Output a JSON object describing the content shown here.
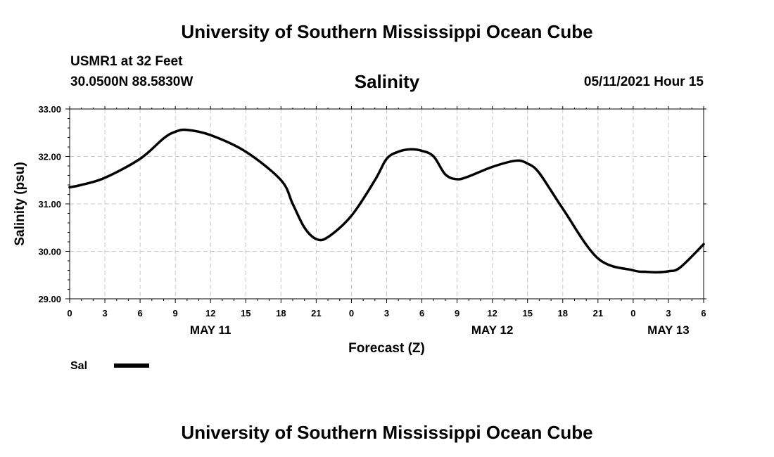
{
  "header": {
    "title": "University of Southern Mississippi Ocean Cube",
    "station": "USMR1 at 32 Feet",
    "coordinates": "30.0500N  88.5830W",
    "parameter": "Salinity",
    "datetime": "05/11/2021 Hour 15"
  },
  "footer": {
    "title": "University of Southern Mississippi Ocean Cube"
  },
  "chart_data": {
    "type": "line",
    "title": "Salinity",
    "xlabel": "Forecast (Z)",
    "ylabel": "Salinity (psu)",
    "ylim": [
      29.0,
      33.0
    ],
    "xlim": [
      0,
      54
    ],
    "yticks": [
      29.0,
      30.0,
      31.0,
      32.0,
      33.0
    ],
    "ytick_labels": [
      "29.00",
      "30.00",
      "31.00",
      "32.00",
      "33.00"
    ],
    "xticks": [
      0,
      3,
      6,
      9,
      12,
      15,
      18,
      21,
      24,
      27,
      30,
      33,
      36,
      39,
      42,
      45,
      48,
      51,
      54
    ],
    "xtick_labels": [
      "0",
      "3",
      "6",
      "9",
      "12",
      "15",
      "18",
      "21",
      "0",
      "3",
      "6",
      "9",
      "12",
      "15",
      "18",
      "21",
      "0",
      "3",
      "6"
    ],
    "day_labels": [
      {
        "x": 12,
        "label": "MAY 11"
      },
      {
        "x": 36,
        "label": "MAY 12"
      },
      {
        "x": 51,
        "label": "MAY 13"
      }
    ],
    "grid": true,
    "legend": [
      {
        "name": "Sal"
      }
    ],
    "series": [
      {
        "name": "Sal",
        "x": [
          0,
          1,
          3,
          6,
          8,
          9,
          10,
          12,
          15,
          18,
          19,
          20,
          21,
          22,
          24,
          26,
          27,
          28,
          29,
          30,
          31,
          32,
          33,
          34,
          36,
          38,
          39,
          40,
          42,
          45,
          48,
          49,
          50,
          51,
          52,
          54
        ],
        "y": [
          31.35,
          31.4,
          31.55,
          31.95,
          32.38,
          32.52,
          32.56,
          32.45,
          32.1,
          31.5,
          31.0,
          30.5,
          30.26,
          30.3,
          30.75,
          31.5,
          31.95,
          32.1,
          32.15,
          32.12,
          32.0,
          31.62,
          31.52,
          31.58,
          31.78,
          31.91,
          31.85,
          31.65,
          30.9,
          29.85,
          29.6,
          29.57,
          29.56,
          29.58,
          29.66,
          30.15
        ]
      }
    ]
  }
}
